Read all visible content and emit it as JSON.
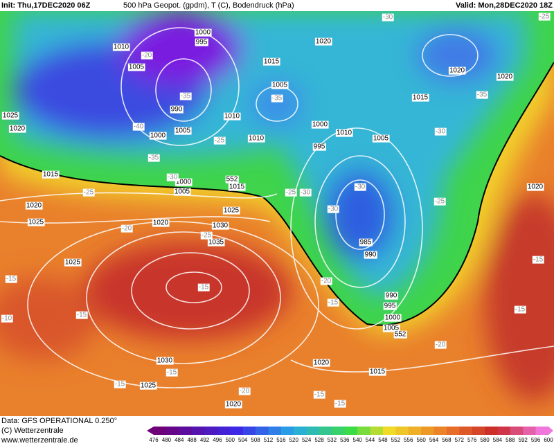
{
  "header": {
    "init": "Init: Thu,17DEC2020 06Z",
    "title": "500 hPa Geopot. (gpdm), T (C), Bodendruck (hPa)",
    "valid": "Valid: Mon,28DEC2020 18Z"
  },
  "footer": {
    "data": "Data: GFS OPERATIONAL 0.250°",
    "copyright": "(C) Wetterzentrale",
    "url": "www.wetterzentrale.de"
  },
  "legend": {
    "labels": [
      476,
      480,
      484,
      488,
      492,
      496,
      500,
      504,
      508,
      512,
      516,
      520,
      524,
      528,
      532,
      536,
      540,
      544,
      548,
      552,
      556,
      560,
      564,
      568,
      572,
      576,
      580,
      584,
      588,
      592,
      596,
      600
    ]
  },
  "map": {
    "pressure_labels": [
      1000,
      995,
      1010,
      1005,
      1025,
      1020,
      990,
      1000,
      1005,
      1010,
      1010,
      1015,
      1005,
      1020,
      1015,
      1020,
      1020,
      1000,
      995,
      1010,
      1005,
      1015,
      1000,
      1005,
      1015,
      1020,
      1025,
      1025,
      1020,
      1030,
      1035,
      1025,
      985,
      990,
      990,
      995,
      1000,
      1005,
      1030,
      1025,
      1020,
      1015,
      1020,
      1020
    ],
    "temperature_labels": [
      -20,
      -35,
      -40,
      -25,
      -35,
      -30,
      -25,
      -20,
      -25,
      -35,
      -25,
      -30,
      -30,
      -30,
      -30,
      -35,
      -30,
      -25,
      -25,
      -15,
      -15,
      -10,
      -15,
      -20,
      -15,
      -15,
      -15,
      -20,
      -15,
      -15,
      -20,
      -15,
      -15
    ],
    "geopotential_labels": [
      552,
      552
    ]
  }
}
